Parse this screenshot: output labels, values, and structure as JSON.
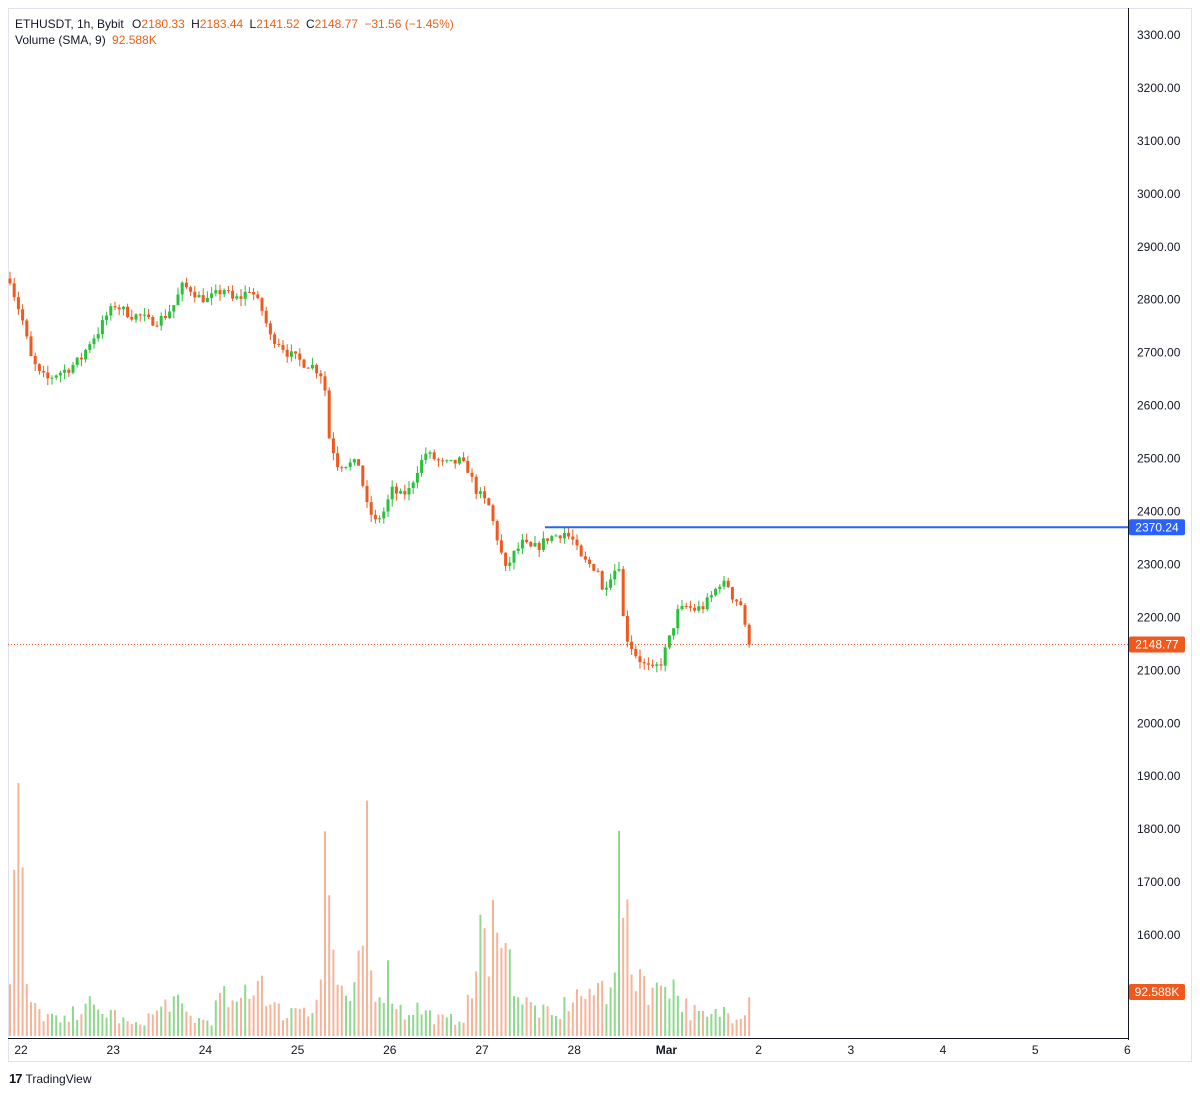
{
  "legend": {
    "symbol": "ETHUSDT, 1h, Bybit",
    "o_label": "O",
    "o": "2180.33",
    "h_label": "H",
    "h": "2183.44",
    "l_label": "L",
    "l": "2141.52",
    "c_label": "C",
    "c": "2148.77",
    "change": "−31.56 (−1.45%)",
    "volume_label": "Volume (SMA, 9)",
    "volume_value": "92.588K"
  },
  "branding": {
    "name": "TradingView",
    "mark": "17"
  },
  "colors": {
    "up": "#27c13a",
    "down": "#f0591e",
    "vol_up": "#8fd98f",
    "vol_down": "#f7b398",
    "level": "#2962ff",
    "last": "#f0591e"
  },
  "chart_data": {
    "type": "candlestick",
    "symbol": "ETHUSDT",
    "interval": "1h",
    "y_ticks": [
      "3300.00",
      "3200.00",
      "3100.00",
      "3000.00",
      "2900.00",
      "2800.00",
      "2700.00",
      "2600.00",
      "2500.00",
      "2400.00",
      "2300.00",
      "2200.00",
      "2100.00",
      "2000.00",
      "1900.00",
      "1800.00",
      "1700.00",
      "1600.00"
    ],
    "ylim": [
      1500,
      3350
    ],
    "x_ticks": [
      "22",
      "23",
      "24",
      "25",
      "26",
      "27",
      "28",
      "Mar",
      "2",
      "3",
      "4",
      "5",
      "6"
    ],
    "horizontal_line": {
      "value": 2370.24,
      "label": "2370.24"
    },
    "last_price": {
      "value": 2148.77,
      "label": "2148.77"
    },
    "volume_last_label": "92.588K",
    "candle_count": 176,
    "path_keypoints": [
      [
        0,
        2840
      ],
      [
        1,
        2810
      ],
      [
        3,
        2760
      ],
      [
        5,
        2690
      ],
      [
        7,
        2660
      ],
      [
        9,
        2650
      ],
      [
        11,
        2660
      ],
      [
        14,
        2670
      ],
      [
        17,
        2690
      ],
      [
        19,
        2720
      ],
      [
        21,
        2740
      ],
      [
        23,
        2770
      ],
      [
        25,
        2790
      ],
      [
        27,
        2780
      ],
      [
        29,
        2770
      ],
      [
        31,
        2770
      ],
      [
        33,
        2760
      ],
      [
        35,
        2760
      ],
      [
        37,
        2770
      ],
      [
        39,
        2790
      ],
      [
        41,
        2825
      ],
      [
        43,
        2820
      ],
      [
        45,
        2805
      ],
      [
        47,
        2800
      ],
      [
        49,
        2810
      ],
      [
        51,
        2820
      ],
      [
        53,
        2800
      ],
      [
        55,
        2805
      ],
      [
        57,
        2820
      ],
      [
        58,
        2810
      ],
      [
        60,
        2780
      ],
      [
        62,
        2730
      ],
      [
        64,
        2720
      ],
      [
        66,
        2700
      ],
      [
        68,
        2690
      ],
      [
        70,
        2680
      ],
      [
        72,
        2675
      ],
      [
        74,
        2660
      ],
      [
        75,
        2630
      ],
      [
        76,
        2540
      ],
      [
        78,
        2490
      ],
      [
        80,
        2490
      ],
      [
        83,
        2490
      ],
      [
        85,
        2410
      ],
      [
        87,
        2380
      ],
      [
        89,
        2400
      ],
      [
        91,
        2440
      ],
      [
        93,
        2430
      ],
      [
        95,
        2440
      ],
      [
        97,
        2480
      ],
      [
        99,
        2510
      ],
      [
        101,
        2500
      ],
      [
        103,
        2490
      ],
      [
        105,
        2490
      ],
      [
        107,
        2495
      ],
      [
        109,
        2480
      ],
      [
        111,
        2440
      ],
      [
        114,
        2410
      ],
      [
        116,
        2350
      ],
      [
        118,
        2290
      ],
      [
        120,
        2320
      ],
      [
        122,
        2340
      ],
      [
        124,
        2330
      ],
      [
        126,
        2335
      ],
      [
        128,
        2350
      ],
      [
        130,
        2355
      ],
      [
        132,
        2360
      ],
      [
        134,
        2345
      ],
      [
        136,
        2310
      ],
      [
        138,
        2300
      ],
      [
        140,
        2290
      ],
      [
        141,
        2250
      ],
      [
        143,
        2280
      ],
      [
        145,
        2300
      ],
      [
        146,
        2200
      ],
      [
        147,
        2160
      ],
      [
        149,
        2130
      ],
      [
        151,
        2110
      ],
      [
        153,
        2100
      ],
      [
        155,
        2115
      ],
      [
        157,
        2160
      ],
      [
        159,
        2210
      ],
      [
        161,
        2220
      ],
      [
        163,
        2215
      ],
      [
        165,
        2220
      ],
      [
        167,
        2240
      ],
      [
        169,
        2265
      ],
      [
        171,
        2260
      ],
      [
        172,
        2240
      ],
      [
        174,
        2225
      ],
      [
        175,
        2180
      ],
      [
        176,
        2149
      ]
    ],
    "volume_profile": [
      [
        0,
        80
      ],
      [
        2,
        280
      ],
      [
        4,
        50
      ],
      [
        6,
        30
      ],
      [
        8,
        25
      ],
      [
        10,
        22
      ],
      [
        12,
        15
      ],
      [
        14,
        20
      ],
      [
        16,
        30
      ],
      [
        18,
        45
      ],
      [
        20,
        28
      ],
      [
        22,
        25
      ],
      [
        24,
        30
      ],
      [
        26,
        20
      ],
      [
        28,
        15
      ],
      [
        30,
        12
      ],
      [
        32,
        20
      ],
      [
        34,
        25
      ],
      [
        36,
        30
      ],
      [
        38,
        45
      ],
      [
        40,
        35
      ],
      [
        42,
        25
      ],
      [
        44,
        20
      ],
      [
        46,
        18
      ],
      [
        48,
        20
      ],
      [
        50,
        45
      ],
      [
        52,
        40
      ],
      [
        54,
        30
      ],
      [
        56,
        55
      ],
      [
        58,
        60
      ],
      [
        60,
        75
      ],
      [
        62,
        35
      ],
      [
        64,
        30
      ],
      [
        66,
        25
      ],
      [
        68,
        35
      ],
      [
        70,
        40
      ],
      [
        72,
        30
      ],
      [
        74,
        60
      ],
      [
        75,
        240
      ],
      [
        76,
        160
      ],
      [
        78,
        55
      ],
      [
        80,
        35
      ],
      [
        82,
        50
      ],
      [
        84,
        95
      ],
      [
        85,
        300
      ],
      [
        86,
        70
      ],
      [
        88,
        55
      ],
      [
        90,
        70
      ],
      [
        92,
        40
      ],
      [
        94,
        25
      ],
      [
        96,
        35
      ],
      [
        98,
        30
      ],
      [
        100,
        25
      ],
      [
        102,
        20
      ],
      [
        104,
        18
      ],
      [
        106,
        20
      ],
      [
        108,
        25
      ],
      [
        110,
        45
      ],
      [
        112,
        140
      ],
      [
        114,
        60
      ],
      [
        116,
        200
      ],
      [
        118,
        100
      ],
      [
        120,
        70
      ],
      [
        122,
        40
      ],
      [
        124,
        35
      ],
      [
        126,
        30
      ],
      [
        128,
        25
      ],
      [
        130,
        20
      ],
      [
        132,
        35
      ],
      [
        134,
        45
      ],
      [
        136,
        50
      ],
      [
        138,
        40
      ],
      [
        140,
        60
      ],
      [
        142,
        55
      ],
      [
        144,
        100
      ],
      [
        145,
        190
      ],
      [
        146,
        160
      ],
      [
        148,
        70
      ],
      [
        150,
        80
      ],
      [
        152,
        60
      ],
      [
        154,
        50
      ],
      [
        156,
        75
      ],
      [
        158,
        60
      ],
      [
        160,
        40
      ],
      [
        162,
        30
      ],
      [
        164,
        25
      ],
      [
        166,
        20
      ],
      [
        168,
        25
      ],
      [
        170,
        30
      ],
      [
        172,
        25
      ],
      [
        174,
        30
      ],
      [
        176,
        45
      ]
    ]
  }
}
